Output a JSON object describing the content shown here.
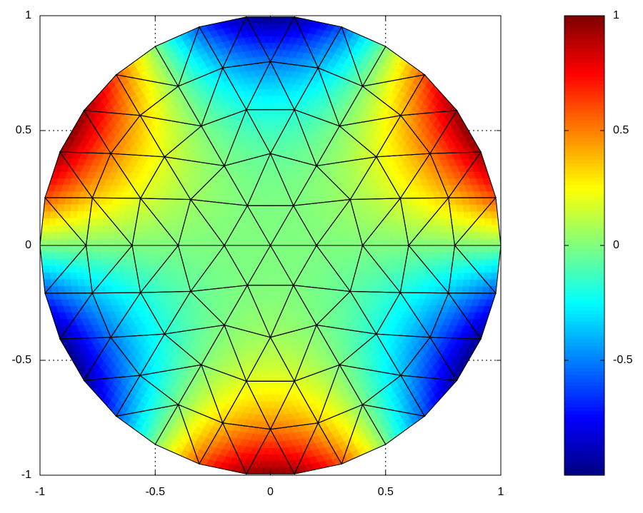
{
  "chart_data": {
    "type": "mesh",
    "colormap": "jet",
    "grid": true,
    "xlim": [
      -1,
      1
    ],
    "ylim": [
      -1,
      1
    ],
    "xticks": [
      -1,
      -0.5,
      0,
      0.5,
      1
    ],
    "yticks": [
      -1,
      -0.5,
      0,
      0.5,
      1
    ],
    "clim": [
      -1,
      1
    ],
    "cticks": [
      -0.5,
      0,
      0.5,
      1
    ]
  }
}
